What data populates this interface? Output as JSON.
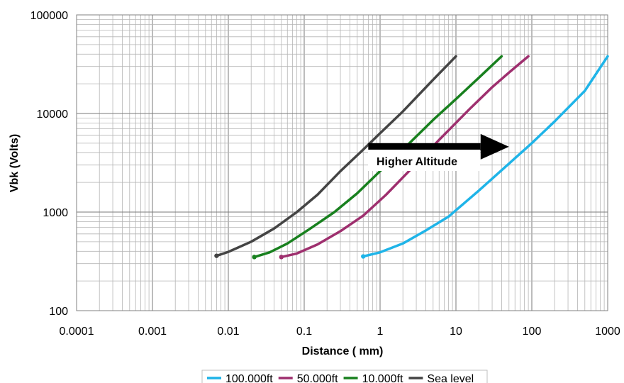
{
  "chart_data": {
    "type": "line",
    "xscale": "log",
    "yscale": "log",
    "xlim": [
      0.0001,
      1000
    ],
    "ylim": [
      100,
      100000
    ],
    "xlabel": "Distance ( mm)",
    "ylabel": "Vbk (Volts)",
    "x_ticks": [
      "0.0001",
      "0.001",
      "0.01",
      "0.1",
      "1",
      "10",
      "100",
      "1000"
    ],
    "y_ticks": [
      "100",
      "1000",
      "10000",
      "100000"
    ],
    "grid": "major and minor",
    "legend_position": "bottom",
    "series": [
      {
        "name": "100.000ft",
        "color": "#1fb4e8",
        "x": [
          0.6,
          1.0,
          2.0,
          4.0,
          8.0,
          20.0,
          50.0,
          100.0,
          200.0,
          500.0,
          1000.0
        ],
        "y": [
          355,
          390,
          480,
          650,
          900,
          1650,
          3100,
          5000,
          8300,
          17000,
          38000
        ]
      },
      {
        "name": "50.000ft",
        "color": "#9e2f6e",
        "x": [
          0.05,
          0.08,
          0.15,
          0.3,
          0.6,
          1.2,
          3.0,
          6.0,
          15.0,
          30.0,
          50.0,
          90.0
        ],
        "y": [
          350,
          380,
          470,
          640,
          920,
          1500,
          3100,
          5400,
          11000,
          18500,
          26000,
          38000
        ]
      },
      {
        "name": "10.000ft",
        "color": "#18801e",
        "x": [
          0.022,
          0.035,
          0.06,
          0.12,
          0.25,
          0.5,
          1.0,
          2.0,
          5.0,
          10.0,
          20.0,
          40.0
        ],
        "y": [
          350,
          390,
          480,
          680,
          1000,
          1550,
          2600,
          4300,
          8600,
          14000,
          23000,
          38000
        ]
      },
      {
        "name": "Sea level",
        "color": "#444444",
        "x": [
          0.007,
          0.01,
          0.02,
          0.04,
          0.08,
          0.15,
          0.3,
          0.6,
          1.0,
          2.0,
          5.0,
          10.0
        ],
        "y": [
          360,
          395,
          500,
          680,
          1000,
          1500,
          2600,
          4300,
          6300,
          10500,
          22000,
          38000
        ]
      }
    ],
    "annotation": {
      "text": "Higher Altitude",
      "arrow_from_x": 0.7,
      "arrow_to_x": 50,
      "arrow_y": 4600
    }
  }
}
